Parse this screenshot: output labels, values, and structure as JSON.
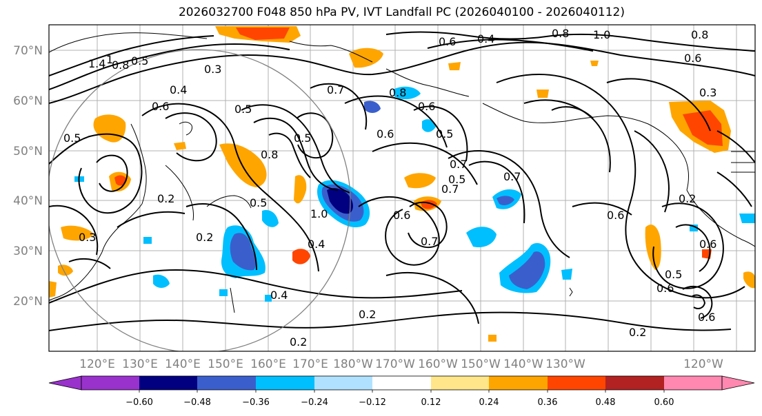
{
  "title": "2026032700 F048 850 hPa PV, IVT Landfall PC (2026040100 - 2026040112)",
  "lat_labels": [
    "70°N",
    "60°N",
    "50°N",
    "40°N",
    "30°N",
    "20°N"
  ],
  "lon_labels": [
    "120°E",
    "130°E",
    "140°E",
    "150°E",
    "160°E",
    "170°E",
    "180°W",
    "170°W",
    "160°W",
    "150°W",
    "140°W",
    "130°W",
    "120°W"
  ],
  "colorbar": {
    "ticks": [
      "−0.60",
      "−0.48",
      "−0.36",
      "−0.24",
      "−0.12",
      "0.12",
      "0.24",
      "0.36",
      "0.48",
      "0.60"
    ],
    "colors": [
      "#9932cc",
      "#000080",
      "#3a5fcd",
      "#00bfff",
      "#b0e2ff",
      "#ffffff",
      "#ffe68a",
      "#ffa500",
      "#ff4500",
      "#b22222",
      "#ff88b0"
    ]
  },
  "contour_labels": [
    "1.4",
    "1",
    "0.8",
    "0.5",
    "0.3",
    "0.4",
    "0.6",
    "0.5",
    "0.7",
    "0.8",
    "0.6",
    "0.6",
    "0.4",
    "0.8",
    "1.0",
    "0.8",
    "0.6",
    "0.3",
    "0.6",
    "0.5",
    "0.5",
    "0.8",
    "0.5",
    "0.7",
    "0.7",
    "0.7",
    "0.4",
    "1.0",
    "0.5",
    "0.6",
    "0.7",
    "0.5",
    "0.6",
    "0.3",
    "0.2",
    "0.4",
    "0.2",
    "0.2",
    "0.6",
    "0.5",
    "0.6",
    "0.2",
    "0.2",
    "0.6",
    "0.2"
  ],
  "colors": {
    "grid": "#b0b0b0",
    "contour": "#000000",
    "coast": "#000000",
    "circle": "#808080"
  }
}
